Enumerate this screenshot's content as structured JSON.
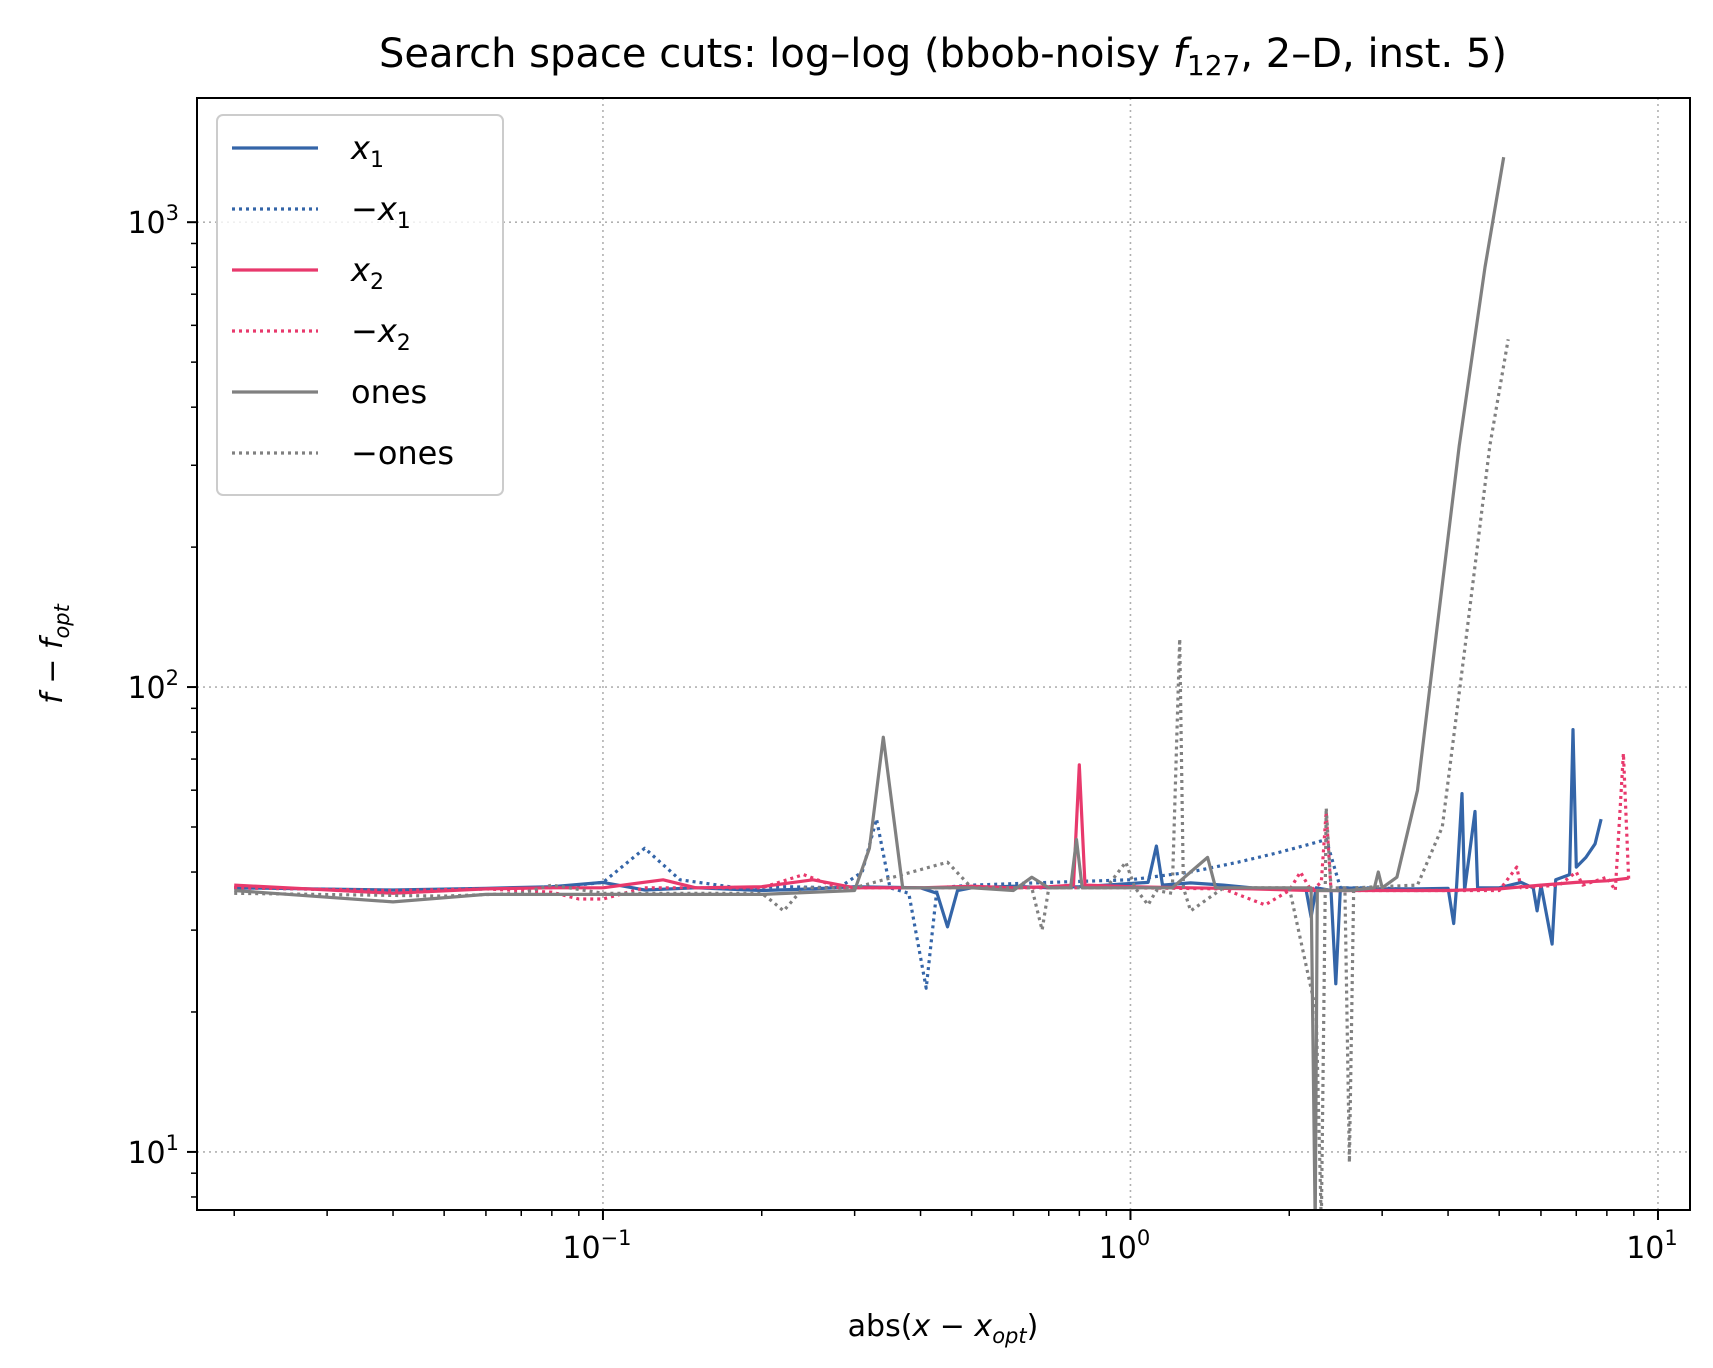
{
  "chart_data": {
    "type": "line",
    "title": {
      "prefix": "Search space cuts: log–log (bbob-noisy ",
      "fn": "f",
      "fn_sub": "127",
      "suffix": ", 2–D, inst. 5)"
    },
    "xlabel": {
      "prefix": "abs(",
      "var": "x",
      "op": " − ",
      "var2": "x",
      "sub": "opt",
      "suffix": ")"
    },
    "ylabel": {
      "var": "f",
      "op": " − ",
      "var2": "f",
      "sub": "opt"
    },
    "x_scale": "log",
    "y_scale": "log",
    "xlim": [
      0.017,
      11.5
    ],
    "ylim": [
      7.5,
      1850
    ],
    "x_ticks": [
      {
        "value": 0.1,
        "base": "10",
        "exp": "−1"
      },
      {
        "value": 1,
        "base": "10",
        "exp": "0"
      },
      {
        "value": 10,
        "base": "10",
        "exp": "1"
      }
    ],
    "y_ticks": [
      {
        "value": 10,
        "base": "10",
        "exp": "1"
      },
      {
        "value": 100,
        "base": "10",
        "exp": "2"
      },
      {
        "value": 1000,
        "base": "10",
        "exp": "3"
      }
    ],
    "grid": true,
    "legend_position": "top-left",
    "series": [
      {
        "name": "x",
        "name_sub": "1",
        "name_prefix": "",
        "color": "#3465a8",
        "dash": "solid",
        "points": [
          [
            0.02,
            37.0
          ],
          [
            0.04,
            36.6
          ],
          [
            0.06,
            36.9
          ],
          [
            0.08,
            37.2
          ],
          [
            0.1,
            38.0
          ],
          [
            0.12,
            36.6
          ],
          [
            0.15,
            37.0
          ],
          [
            0.2,
            36.5
          ],
          [
            0.25,
            36.8
          ],
          [
            0.3,
            37.2
          ],
          [
            0.4,
            37.0
          ],
          [
            0.43,
            36.0
          ],
          [
            0.45,
            30.5
          ],
          [
            0.47,
            36.5
          ],
          [
            0.5,
            37.0
          ],
          [
            0.6,
            37.3
          ],
          [
            0.7,
            37.0
          ],
          [
            0.8,
            37.2
          ],
          [
            0.9,
            37.5
          ],
          [
            1.0,
            37.8
          ],
          [
            1.08,
            38.0
          ],
          [
            1.12,
            45.5
          ],
          [
            1.15,
            37.5
          ],
          [
            1.3,
            37.9
          ],
          [
            1.5,
            37.5
          ],
          [
            1.7,
            37.0
          ],
          [
            2.0,
            36.8
          ],
          [
            2.15,
            36.9
          ],
          [
            2.2,
            32.0
          ],
          [
            2.25,
            37.0
          ],
          [
            2.4,
            36.5
          ],
          [
            2.45,
            23.0
          ],
          [
            2.5,
            37.0
          ],
          [
            3.0,
            36.8
          ],
          [
            3.5,
            36.8
          ],
          [
            4.0,
            36.9
          ],
          [
            4.1,
            31.0
          ],
          [
            4.15,
            37.0
          ],
          [
            4.25,
            59.0
          ],
          [
            4.3,
            36.5
          ],
          [
            4.5,
            54.0
          ],
          [
            4.55,
            37.0
          ],
          [
            5.0,
            37.0
          ],
          [
            5.5,
            38.0
          ],
          [
            5.8,
            37.0
          ],
          [
            5.9,
            33.0
          ],
          [
            6.0,
            37.5
          ],
          [
            6.3,
            28.0
          ],
          [
            6.4,
            38.5
          ],
          [
            6.8,
            39.5
          ],
          [
            6.9,
            81.0
          ],
          [
            7.0,
            41.0
          ],
          [
            7.3,
            43.0
          ],
          [
            7.6,
            46.0
          ],
          [
            7.8,
            52.0
          ]
        ]
      },
      {
        "name": "x",
        "name_sub": "1",
        "name_prefix": "−",
        "color": "#3465a8",
        "dash": "dotted",
        "points": [
          [
            0.02,
            37.0
          ],
          [
            0.04,
            36.5
          ],
          [
            0.06,
            36.8
          ],
          [
            0.08,
            37.0
          ],
          [
            0.1,
            38.0
          ],
          [
            0.12,
            45.0
          ],
          [
            0.14,
            38.5
          ],
          [
            0.18,
            37.0
          ],
          [
            0.22,
            37.2
          ],
          [
            0.28,
            37.0
          ],
          [
            0.31,
            40.0
          ],
          [
            0.33,
            52.0
          ],
          [
            0.35,
            37.0
          ],
          [
            0.38,
            36.0
          ],
          [
            0.41,
            22.5
          ],
          [
            0.43,
            37.0
          ],
          [
            0.5,
            37.5
          ],
          [
            0.7,
            38.0
          ],
          [
            1.0,
            38.5
          ],
          [
            1.3,
            40.0
          ],
          [
            1.6,
            42.0
          ],
          [
            1.9,
            44.0
          ],
          [
            2.2,
            46.0
          ],
          [
            2.35,
            47.0
          ],
          [
            2.5,
            37.0
          ],
          [
            3.0,
            37.0
          ],
          [
            3.5,
            36.5
          ],
          [
            4.0,
            36.6
          ]
        ]
      },
      {
        "name": "x",
        "name_sub": "2",
        "name_prefix": "",
        "color": "#e8396c",
        "dash": "solid",
        "points": [
          [
            0.02,
            37.5
          ],
          [
            0.04,
            36.0
          ],
          [
            0.06,
            36.8
          ],
          [
            0.08,
            37.0
          ],
          [
            0.1,
            37.0
          ],
          [
            0.13,
            38.5
          ],
          [
            0.15,
            37.0
          ],
          [
            0.2,
            37.2
          ],
          [
            0.25,
            38.5
          ],
          [
            0.3,
            37.0
          ],
          [
            0.4,
            37.0
          ],
          [
            0.5,
            37.3
          ],
          [
            0.6,
            37.0
          ],
          [
            0.7,
            37.2
          ],
          [
            0.78,
            37.5
          ],
          [
            0.8,
            68.0
          ],
          [
            0.82,
            37.5
          ],
          [
            1.0,
            37.2
          ],
          [
            1.3,
            37.0
          ],
          [
            1.7,
            36.8
          ],
          [
            2.2,
            36.5
          ],
          [
            3.0,
            36.5
          ],
          [
            4.0,
            36.5
          ],
          [
            5.0,
            36.8
          ],
          [
            6.0,
            37.5
          ],
          [
            7.0,
            38.0
          ],
          [
            8.0,
            38.3
          ],
          [
            8.8,
            38.8
          ]
        ]
      },
      {
        "name": "x",
        "name_sub": "2",
        "name_prefix": "−",
        "color": "#e8396c",
        "dash": "dotted",
        "points": [
          [
            0.02,
            37.0
          ],
          [
            0.04,
            36.5
          ],
          [
            0.06,
            36.8
          ],
          [
            0.08,
            36.2
          ],
          [
            0.09,
            35.0
          ],
          [
            0.1,
            35.0
          ],
          [
            0.12,
            37.0
          ],
          [
            0.2,
            37.0
          ],
          [
            0.24,
            39.5
          ],
          [
            0.28,
            37.0
          ],
          [
            0.5,
            37.0
          ],
          [
            1.0,
            37.0
          ],
          [
            1.5,
            36.8
          ],
          [
            1.8,
            34.0
          ],
          [
            2.0,
            36.5
          ],
          [
            2.1,
            40.0
          ],
          [
            2.2,
            36.5
          ],
          [
            2.3,
            38.0
          ],
          [
            2.35,
            54.0
          ],
          [
            2.4,
            36.5
          ],
          [
            3.0,
            36.5
          ],
          [
            4.0,
            36.5
          ],
          [
            5.0,
            36.5
          ],
          [
            5.4,
            41.0
          ],
          [
            5.5,
            37.0
          ],
          [
            6.5,
            37.5
          ],
          [
            7.0,
            40.0
          ],
          [
            7.2,
            37.5
          ],
          [
            8.0,
            39.0
          ],
          [
            8.3,
            36.5
          ],
          [
            8.6,
            72.0
          ],
          [
            8.8,
            38.5
          ]
        ]
      },
      {
        "name": "ones",
        "name_sub": "",
        "name_prefix": "",
        "color": "#808080",
        "dash": "solid",
        "points": [
          [
            0.02,
            36.5
          ],
          [
            0.04,
            34.5
          ],
          [
            0.06,
            35.8
          ],
          [
            0.1,
            35.8
          ],
          [
            0.2,
            35.8
          ],
          [
            0.3,
            36.5
          ],
          [
            0.32,
            45.0
          ],
          [
            0.34,
            78.0
          ],
          [
            0.37,
            37.0
          ],
          [
            0.5,
            37.0
          ],
          [
            0.6,
            36.5
          ],
          [
            0.65,
            39.0
          ],
          [
            0.7,
            37.0
          ],
          [
            0.77,
            37.0
          ],
          [
            0.79,
            47.0
          ],
          [
            0.81,
            37.0
          ],
          [
            1.0,
            37.0
          ],
          [
            1.2,
            37.0
          ],
          [
            1.4,
            43.0
          ],
          [
            1.45,
            37.0
          ],
          [
            2.0,
            37.0
          ],
          [
            2.2,
            37.0
          ],
          [
            2.24,
            7.0
          ],
          [
            2.26,
            36.5
          ],
          [
            2.6,
            36.5
          ],
          [
            2.9,
            37.0
          ],
          [
            2.95,
            40.0
          ],
          [
            3.0,
            37.0
          ],
          [
            3.2,
            39.0
          ],
          [
            3.5,
            60.0
          ],
          [
            3.8,
            130.0
          ],
          [
            4.2,
            330.0
          ],
          [
            4.7,
            800.0
          ],
          [
            5.1,
            1380.0
          ]
        ]
      },
      {
        "name": "ones",
        "name_sub": "",
        "name_prefix": "−",
        "color": "#808080",
        "dash": "dotted",
        "points": [
          [
            0.02,
            36.0
          ],
          [
            0.05,
            35.5
          ],
          [
            0.07,
            36.0
          ],
          [
            0.08,
            37.5
          ],
          [
            0.1,
            36.0
          ],
          [
            0.2,
            36.0
          ],
          [
            0.21,
            34.5
          ],
          [
            0.22,
            33.0
          ],
          [
            0.24,
            37.0
          ],
          [
            0.3,
            37.0
          ],
          [
            0.45,
            42.0
          ],
          [
            0.5,
            37.0
          ],
          [
            0.65,
            37.0
          ],
          [
            0.68,
            30.0
          ],
          [
            0.7,
            37.0
          ],
          [
            0.9,
            37.0
          ],
          [
            0.98,
            42.0
          ],
          [
            1.02,
            37.0
          ],
          [
            1.08,
            34.0
          ],
          [
            1.12,
            36.5
          ],
          [
            1.2,
            36.0
          ],
          [
            1.24,
            127.0
          ],
          [
            1.26,
            37.0
          ],
          [
            1.3,
            33.0
          ],
          [
            1.5,
            37.0
          ],
          [
            2.0,
            37.0
          ],
          [
            2.25,
            20.0
          ],
          [
            2.3,
            7.0
          ],
          [
            2.35,
            55.0
          ],
          [
            2.4,
            37.0
          ],
          [
            2.55,
            37.0
          ],
          [
            2.6,
            9.5
          ],
          [
            2.65,
            37.0
          ],
          [
            3.5,
            37.5
          ],
          [
            3.9,
            50.0
          ],
          [
            4.3,
            120.0
          ],
          [
            4.8,
            330.0
          ],
          [
            5.2,
            560.0
          ]
        ]
      }
    ]
  }
}
